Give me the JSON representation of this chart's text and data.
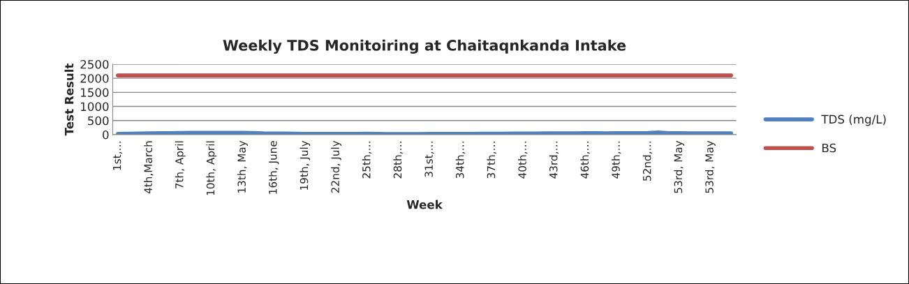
{
  "chart_data": {
    "type": "line",
    "title": "Weekly TDS Monitoiring at Chaitaqnkanda Intake",
    "xlabel": "Week",
    "ylabel": "Test Result",
    "categories": [
      "1st,…",
      null,
      null,
      "4th,March",
      null,
      null,
      "7th, April",
      null,
      null,
      "10th, April",
      null,
      null,
      "13th, May",
      null,
      null,
      "16th, June",
      null,
      null,
      "19th, July",
      null,
      null,
      "22nd, July",
      null,
      null,
      "25th,…",
      null,
      null,
      "28th,…",
      null,
      null,
      "31st,…",
      null,
      null,
      "34th,…",
      null,
      null,
      "37th,…",
      null,
      null,
      "40th,…",
      null,
      null,
      "43rd,…",
      null,
      null,
      "46th,…",
      null,
      null,
      "49th,…",
      null,
      null,
      "52nd,…",
      null,
      null,
      "53rd, May",
      null,
      null,
      "53rd, May",
      null,
      null
    ],
    "series": [
      {
        "name": "TDS (mg/L)",
        "color": "#4f81bd",
        "values": [
          30,
          35,
          40,
          45,
          50,
          55,
          60,
          65,
          65,
          65,
          65,
          65,
          65,
          60,
          45,
          40,
          40,
          35,
          30,
          30,
          30,
          30,
          30,
          30,
          35,
          30,
          25,
          20,
          20,
          25,
          30,
          30,
          30,
          30,
          30,
          35,
          35,
          35,
          40,
          40,
          40,
          45,
          45,
          45,
          45,
          50,
          50,
          45,
          50,
          50,
          55,
          60,
          80,
          55,
          50,
          45,
          45,
          45,
          45,
          45
        ]
      },
      {
        "name": "BS",
        "color": "#c0504d",
        "values": [
          2100,
          2100,
          2100,
          2100,
          2100,
          2100,
          2100,
          2100,
          2100,
          2100,
          2100,
          2100,
          2100,
          2100,
          2100,
          2100,
          2100,
          2100,
          2100,
          2100,
          2100,
          2100,
          2100,
          2100,
          2100,
          2100,
          2100,
          2100,
          2100,
          2100,
          2100,
          2100,
          2100,
          2100,
          2100,
          2100,
          2100,
          2100,
          2100,
          2100,
          2100,
          2100,
          2100,
          2100,
          2100,
          2100,
          2100,
          2100,
          2100,
          2100,
          2100,
          2100,
          2100,
          2100,
          2100,
          2100,
          2100,
          2100,
          2100,
          2100
        ]
      }
    ],
    "ylim": [
      0,
      2500
    ],
    "yticks": [
      0,
      500,
      1000,
      1500,
      2000,
      2500
    ],
    "grid": "y",
    "legend": "right",
    "marker": "none",
    "line_style": "solid"
  }
}
